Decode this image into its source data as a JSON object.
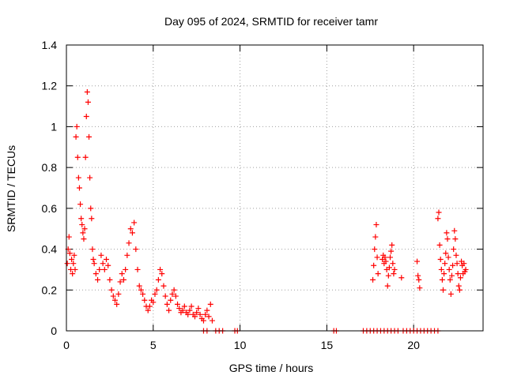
{
  "chart_data": {
    "type": "scatter",
    "title": "Day 095 of 2024, SRMTID for receiver tamr",
    "xlabel": "GPS time / hours",
    "ylabel": "SRMTID / TECUs",
    "xlim": [
      0,
      24
    ],
    "ylim": [
      0,
      1.4
    ],
    "xticks": [
      0,
      5,
      10,
      15,
      20
    ],
    "yticks": [
      0,
      0.2,
      0.4,
      0.6,
      0.8,
      1,
      1.2,
      1.4
    ],
    "ytick_labels": [
      "0",
      "0.2",
      "0.4",
      "0.6",
      "0.8",
      "1",
      "1.2",
      "1.4"
    ],
    "grid": true,
    "marker": "plus",
    "color": "#ff0000",
    "series": [
      {
        "name": "SRMTID",
        "points": [
          [
            0.05,
            0.33
          ],
          [
            0.1,
            0.4
          ],
          [
            0.15,
            0.46
          ],
          [
            0.2,
            0.38
          ],
          [
            0.25,
            0.3
          ],
          [
            0.3,
            0.35
          ],
          [
            0.35,
            0.28
          ],
          [
            0.4,
            0.33
          ],
          [
            0.45,
            0.37
          ],
          [
            0.5,
            0.3
          ],
          [
            0.55,
            0.95
          ],
          [
            0.6,
            1.0
          ],
          [
            0.65,
            0.85
          ],
          [
            0.7,
            0.75
          ],
          [
            0.75,
            0.7
          ],
          [
            0.8,
            0.62
          ],
          [
            0.85,
            0.55
          ],
          [
            0.9,
            0.52
          ],
          [
            0.95,
            0.48
          ],
          [
            1.0,
            0.45
          ],
          [
            1.05,
            0.5
          ],
          [
            1.1,
            0.85
          ],
          [
            1.15,
            1.05
          ],
          [
            1.2,
            1.17
          ],
          [
            1.25,
            1.12
          ],
          [
            1.3,
            0.95
          ],
          [
            1.35,
            0.75
          ],
          [
            1.4,
            0.6
          ],
          [
            1.45,
            0.55
          ],
          [
            1.5,
            0.4
          ],
          [
            1.55,
            0.35
          ],
          [
            1.6,
            0.33
          ],
          [
            1.7,
            0.28
          ],
          [
            1.8,
            0.25
          ],
          [
            1.9,
            0.3
          ],
          [
            2.0,
            0.37
          ],
          [
            2.1,
            0.33
          ],
          [
            2.2,
            0.3
          ],
          [
            2.3,
            0.35
          ],
          [
            2.4,
            0.32
          ],
          [
            2.5,
            0.25
          ],
          [
            2.6,
            0.2
          ],
          [
            2.7,
            0.17
          ],
          [
            2.8,
            0.15
          ],
          [
            2.9,
            0.13
          ],
          [
            3.0,
            0.18
          ],
          [
            3.1,
            0.24
          ],
          [
            3.2,
            0.28
          ],
          [
            3.3,
            0.25
          ],
          [
            3.4,
            0.3
          ],
          [
            3.5,
            0.37
          ],
          [
            3.6,
            0.43
          ],
          [
            3.7,
            0.5
          ],
          [
            3.8,
            0.48
          ],
          [
            3.9,
            0.53
          ],
          [
            4.0,
            0.4
          ],
          [
            4.1,
            0.3
          ],
          [
            4.2,
            0.22
          ],
          [
            4.3,
            0.2
          ],
          [
            4.4,
            0.18
          ],
          [
            4.5,
            0.15
          ],
          [
            4.6,
            0.12
          ],
          [
            4.7,
            0.1
          ],
          [
            4.8,
            0.12
          ],
          [
            4.9,
            0.15
          ],
          [
            5.0,
            0.14
          ],
          [
            5.1,
            0.18
          ],
          [
            5.2,
            0.2
          ],
          [
            5.3,
            0.25
          ],
          [
            5.4,
            0.3
          ],
          [
            5.5,
            0.28
          ],
          [
            5.6,
            0.22
          ],
          [
            5.7,
            0.17
          ],
          [
            5.8,
            0.13
          ],
          [
            5.9,
            0.1
          ],
          [
            6.0,
            0.15
          ],
          [
            6.1,
            0.18
          ],
          [
            6.2,
            0.2
          ],
          [
            6.3,
            0.17
          ],
          [
            6.4,
            0.13
          ],
          [
            6.5,
            0.11
          ],
          [
            6.6,
            0.09
          ],
          [
            6.7,
            0.1
          ],
          [
            6.8,
            0.12
          ],
          [
            6.9,
            0.09
          ],
          [
            7.0,
            0.08
          ],
          [
            7.1,
            0.1
          ],
          [
            7.2,
            0.12
          ],
          [
            7.3,
            0.08
          ],
          [
            7.4,
            0.07
          ],
          [
            7.5,
            0.09
          ],
          [
            7.6,
            0.11
          ],
          [
            7.7,
            0.08
          ],
          [
            7.8,
            0.06
          ],
          [
            7.9,
            0.05
          ],
          [
            8.0,
            0.08
          ],
          [
            8.1,
            0.1
          ],
          [
            8.2,
            0.07
          ],
          [
            8.3,
            0.13
          ],
          [
            8.4,
            0.05
          ],
          [
            7.9,
            0.0
          ],
          [
            8.1,
            0.0
          ],
          [
            8.6,
            0.0
          ],
          [
            8.8,
            0.0
          ],
          [
            9.0,
            0.0
          ],
          [
            9.7,
            0.0
          ],
          [
            9.85,
            0.0
          ],
          [
            15.4,
            0.0
          ],
          [
            15.55,
            0.0
          ],
          [
            17.1,
            0.0
          ],
          [
            17.3,
            0.0
          ],
          [
            17.5,
            0.0
          ],
          [
            17.7,
            0.0
          ],
          [
            17.9,
            0.0
          ],
          [
            18.1,
            0.0
          ],
          [
            18.3,
            0.0
          ],
          [
            18.5,
            0.0
          ],
          [
            18.7,
            0.0
          ],
          [
            18.9,
            0.0
          ],
          [
            19.1,
            0.0
          ],
          [
            19.4,
            0.0
          ],
          [
            19.6,
            0.0
          ],
          [
            19.8,
            0.0
          ],
          [
            20.0,
            0.0
          ],
          [
            20.2,
            0.0
          ],
          [
            20.4,
            0.0
          ],
          [
            20.6,
            0.0
          ],
          [
            20.8,
            0.0
          ],
          [
            21.0,
            0.0
          ],
          [
            21.2,
            0.0
          ],
          [
            21.4,
            0.0
          ],
          [
            17.65,
            0.25
          ],
          [
            17.7,
            0.32
          ],
          [
            17.75,
            0.4
          ],
          [
            17.8,
            0.46
          ],
          [
            17.85,
            0.52
          ],
          [
            17.9,
            0.36
          ],
          [
            17.95,
            0.28
          ],
          [
            18.2,
            0.35
          ],
          [
            18.25,
            0.37
          ],
          [
            18.3,
            0.33
          ],
          [
            18.35,
            0.36
          ],
          [
            18.4,
            0.34
          ],
          [
            18.45,
            0.3
          ],
          [
            18.5,
            0.22
          ],
          [
            18.55,
            0.27
          ],
          [
            18.6,
            0.31
          ],
          [
            18.65,
            0.36
          ],
          [
            18.7,
            0.39
          ],
          [
            18.75,
            0.42
          ],
          [
            18.8,
            0.33
          ],
          [
            18.85,
            0.28
          ],
          [
            18.9,
            0.3
          ],
          [
            19.3,
            0.26
          ],
          [
            20.2,
            0.34
          ],
          [
            20.25,
            0.27
          ],
          [
            20.3,
            0.25
          ],
          [
            20.35,
            0.21
          ],
          [
            21.4,
            0.55
          ],
          [
            21.45,
            0.58
          ],
          [
            21.5,
            0.42
          ],
          [
            21.55,
            0.35
          ],
          [
            21.6,
            0.3
          ],
          [
            21.65,
            0.25
          ],
          [
            21.7,
            0.2
          ],
          [
            21.75,
            0.28
          ],
          [
            21.8,
            0.33
          ],
          [
            21.85,
            0.38
          ],
          [
            21.9,
            0.48
          ],
          [
            21.95,
            0.45
          ],
          [
            22.0,
            0.36
          ],
          [
            22.05,
            0.3
          ],
          [
            22.1,
            0.25
          ],
          [
            22.15,
            0.18
          ],
          [
            22.2,
            0.27
          ],
          [
            22.25,
            0.32
          ],
          [
            22.3,
            0.4
          ],
          [
            22.35,
            0.49
          ],
          [
            22.4,
            0.45
          ],
          [
            22.45,
            0.37
          ],
          [
            22.5,
            0.33
          ],
          [
            22.55,
            0.28
          ],
          [
            22.6,
            0.22
          ],
          [
            22.65,
            0.2
          ],
          [
            22.7,
            0.26
          ],
          [
            22.75,
            0.34
          ],
          [
            22.8,
            0.32
          ],
          [
            22.85,
            0.28
          ],
          [
            22.9,
            0.33
          ],
          [
            22.95,
            0.29
          ],
          [
            23.0,
            0.3
          ]
        ]
      }
    ]
  }
}
